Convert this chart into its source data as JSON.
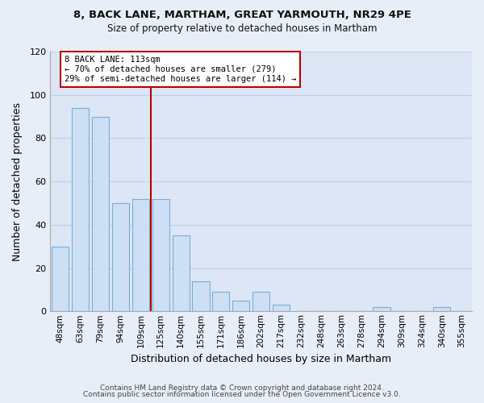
{
  "title1": "8, BACK LANE, MARTHAM, GREAT YARMOUTH, NR29 4PE",
  "title2": "Size of property relative to detached houses in Martham",
  "xlabel": "Distribution of detached houses by size in Martham",
  "ylabel": "Number of detached properties",
  "bar_labels": [
    "48sqm",
    "63sqm",
    "79sqm",
    "94sqm",
    "109sqm",
    "125sqm",
    "140sqm",
    "155sqm",
    "171sqm",
    "186sqm",
    "202sqm",
    "217sqm",
    "232sqm",
    "248sqm",
    "263sqm",
    "278sqm",
    "294sqm",
    "309sqm",
    "324sqm",
    "340sqm",
    "355sqm"
  ],
  "bar_values": [
    30,
    94,
    90,
    50,
    52,
    52,
    35,
    14,
    9,
    5,
    9,
    3,
    0,
    0,
    0,
    0,
    2,
    0,
    0,
    2,
    0
  ],
  "bar_color": "#ccdff5",
  "bar_edge_color": "#7bafd4",
  "vline_color": "#bb0000",
  "annotation_text": "8 BACK LANE: 113sqm\n← 70% of detached houses are smaller (279)\n29% of semi-detached houses are larger (114) →",
  "annotation_box_color": "#ffffff",
  "annotation_box_edge_color": "#bb0000",
  "ylim": [
    0,
    120
  ],
  "yticks": [
    0,
    20,
    40,
    60,
    80,
    100,
    120
  ],
  "footer1": "Contains HM Land Registry data © Crown copyright and database right 2024.",
  "footer2": "Contains public sector information licensed under the Open Government Licence v3.0.",
  "background_color": "#e8eef8",
  "plot_bg_color": "#dce6f5",
  "grid_color": "#c0cfe8"
}
